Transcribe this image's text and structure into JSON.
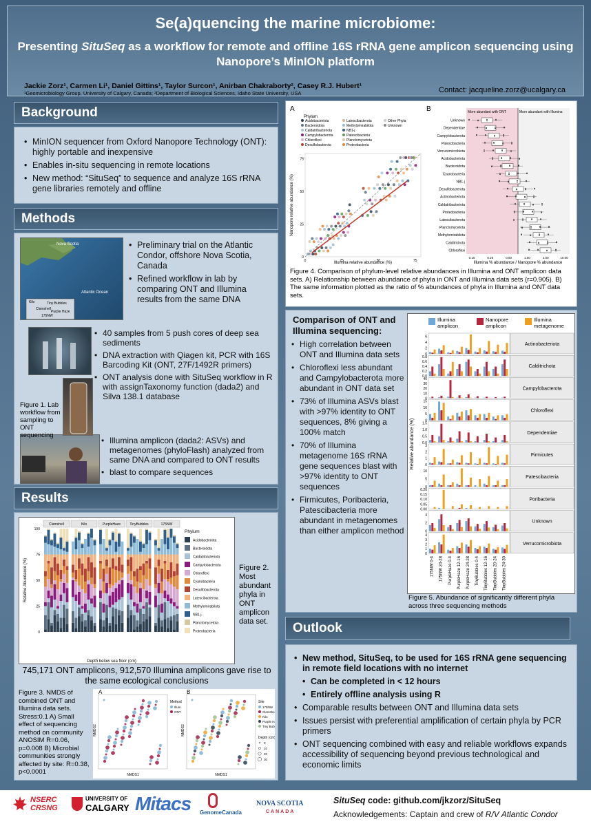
{
  "header": {
    "title": "Se(a)quencing the marine microbiome:",
    "subtitle_pre": "Presenting ",
    "subtitle_em": "SituSeq",
    "subtitle_post": " as a workflow for remote and offline 16S rRNA gene amplicon sequencing using Nanopore’s MinION platform",
    "authors": "Jackie Zorz¹, Carmen Li¹, Daniel Gittins¹, Taylor Surcon¹, Anirban Chakraborty², Casey R.J. Hubert¹",
    "affiliations": "¹Geomicrobiology Group, University of Calgary, Canada; ²Department of Biological Sciences, Idaho State University, USA",
    "contact": "Contact: jacqueline.zorz@ucalgary.ca"
  },
  "background": {
    "heading": "Background",
    "items": [
      "MinION sequencer from Oxford Nanopore Technology (ONT): highly portable and inexpensive",
      "Enables in-situ sequencing in remote locations",
      "New method: “SituSeq” to sequence and analyze 16S rRNA gene libraries remotely and offline"
    ]
  },
  "methods": {
    "heading": "Methods",
    "map_labels": [
      "Nova Scotia",
      "Atlantic Ocean",
      "Kilo",
      "Tiny Bubbles",
      "Clamshell",
      "Purple Haze",
      "175NW"
    ],
    "items_a": [
      "Preliminary trial on the Atlantic Condor, offshore Nova Scotia, Canada",
      "Refined workflow in lab by comparing ONT and Illumina results from the same DNA"
    ],
    "items_b": [
      "40 samples from 5 push cores of deep sea sediments",
      "DNA extraction with Qiagen kit, PCR with 16S Barcoding Kit (ONT, 27F/1492R primers)",
      "ONT analysis done with SituSeq workflow in R with assignTaxonomy function (dada2) and Silva 138.1 database"
    ],
    "items_c": [
      "Illumina amplicon (dada2: ASVs) and metagenomes (phyloFlash) analyzed from same DNA and compared to ONT results",
      "blast to compare sequences"
    ],
    "fig1_caption": "Figure 1. Lab workflow from sampling to ONT sequencing"
  },
  "results": {
    "heading": "Results",
    "fig2_caption": "Figure 2. Most abundant phyla in ONT amplicon data set.",
    "summary": "745,171 ONT amplicons, 912,570 Illumina amplicons gave rise to the same ecological conclusions",
    "fig3_caption": "Figure 3. NMDS of combined ONT and Illumina data sets. Stress:0.1 A) Small effect of sequencing method on community ANOSIM R=0.06, p=0.008 B) Microbial communities strongly affected by site: R=0.38, p<0.0001"
  },
  "fig2": {
    "sites": [
      "Clamshell",
      "Kilo",
      "PurpleHaze",
      "TinyBubbles",
      "175NW"
    ],
    "ylabel": "Relative Abundance (%)",
    "xlabel": "Depth below sea floor (cm)",
    "yticks": [
      "0",
      "25",
      "50",
      "75",
      "100"
    ],
    "legend_title": "Phylum",
    "phyla": [
      {
        "name": "Acidobacteriota",
        "color": "#2b3e50"
      },
      {
        "name": "Bacteroidota",
        "color": "#5b6f82"
      },
      {
        "name": "Caldatribacteriota",
        "color": "#a9c2d6"
      },
      {
        "name": "Campylobacterota",
        "color": "#8a1a7e"
      },
      {
        "name": "Chloroflexi",
        "color": "#d6a9d0"
      },
      {
        "name": "Cyanobacteria",
        "color": "#e08a3c"
      },
      {
        "name": "Desulfobacterota",
        "color": "#b3422e"
      },
      {
        "name": "Latescibacterota",
        "color": "#f2b37f"
      },
      {
        "name": "Methylomirabilota",
        "color": "#8fbcd9"
      },
      {
        "name": "NB1-j",
        "color": "#2d5f8a"
      },
      {
        "name": "Planctomycetota",
        "color": "#d9c9a3"
      },
      {
        "name": "Proteobacteria",
        "color": "#efe0b8"
      }
    ]
  },
  "fig3": {
    "panel_a": "A",
    "panel_b": "B",
    "xlabel": "NMDS1",
    "ylabel": "NMDS2",
    "legend_a_title": "Method",
    "legend_a": [
      {
        "name": "Illum.",
        "color": "#7fb2d2"
      },
      {
        "name": "ONT",
        "color": "#a51e4a"
      }
    ],
    "legend_b_title": "Site",
    "legend_b": [
      {
        "name": "175NW",
        "color": "#7fb2d2"
      },
      {
        "name": "Clamshell",
        "color": "#a51e4a"
      },
      {
        "name": "Kilo",
        "color": "#f0a431"
      },
      {
        "name": "Purple Haze",
        "color": "#2b3e50"
      },
      {
        "name": "Tiny Bubbles",
        "color": "#9ac18a"
      }
    ],
    "depth_title": "Depth (cm)",
    "depth_values": [
      "0",
      "10",
      "20",
      "30"
    ]
  },
  "fig4": {
    "panel_a": "A",
    "panel_b": "B",
    "legend_title": "Phylum",
    "legend_items": [
      {
        "name": "Acidobacteriota",
        "color": "#2b3e50"
      },
      {
        "name": "Bacteroidota",
        "color": "#5b6f82"
      },
      {
        "name": "Caldatribacteriota",
        "color": "#a9c2d6"
      },
      {
        "name": "Campylobacterota",
        "color": "#8a1a7e"
      },
      {
        "name": "Chloroflexi",
        "color": "#d6a9d0"
      },
      {
        "name": "Desulfobacterota",
        "color": "#b3422e"
      },
      {
        "name": "Latescibacterota",
        "color": "#f2b37f"
      },
      {
        "name": "Methylomirabilota",
        "color": "#8fbcd9"
      },
      {
        "name": "NB1-j",
        "color": "#2d5f8a"
      },
      {
        "name": "Patescibacteria",
        "color": "#5aa05a"
      },
      {
        "name": "Planctomycetota",
        "color": "#d9c9a3"
      },
      {
        "name": "Proteobacteria",
        "color": "#e08a3c"
      },
      {
        "name": "Other Phyla",
        "color": "#cccccc"
      },
      {
        "name": "Unknown",
        "color": "#888888"
      }
    ],
    "a_xlabel": "Illumina relative abundance (%)",
    "a_ylabel": "Nanopore relative abundance (%)",
    "a_ticks": [
      "0",
      "25",
      "50",
      "75"
    ],
    "b_header_left": "More abundant with ONT",
    "b_header_right": "More abundant with Illumina",
    "b_xlabel": "Illumina % abundance / Nanopore % abundance",
    "b_xticks": [
      "0.10",
      "0.25",
      "0.50",
      "1.00",
      "2.50",
      "10.00"
    ],
    "b_rows": [
      "Unknown",
      "Dependentiae",
      "Campylobacterota",
      "Patescibacteria",
      "Verrucomicrobiota",
      "Acidobacteriota",
      "Bacteroidota",
      "Cyanobacteria",
      "NB1-j",
      "Desulfobacterota",
      "Actinobacteriota",
      "Caldatribacteriota",
      "Proteobacteria",
      "Latescibacterota",
      "Planctomycetota",
      "Methylomirabilota",
      "Calditrichota",
      "Chloroflexi"
    ],
    "caption": "Figure 4. Comparison of phylum-level relative abundances in Illumina and ONT amplicon data sets. A) Relationship between abundance of phyla in ONT and Illumina data sets (r=0.905). B) The same information plotted as the ratio of % abundances of phyla in Illumina and ONT data sets."
  },
  "comparison": {
    "heading": "Comparison of ONT and Illumina sequencing:",
    "items": [
      "High correlation between ONT and Illumina data sets",
      "Chloroflexi less abundant and Campylobacterota more abundant in ONT data set",
      "73% of Illumina ASVs blast with >97% identity to ONT sequences, 8% giving a 100% match",
      "70% of Illumina metagenome 16S rRNA gene sequences blast with >97% identity to ONT sequences",
      "Firmicutes, Poribacteria, Patescibacteria more abundant in metagenomes than either amplicon method"
    ]
  },
  "chart_data": {
    "type": "bar",
    "title": "",
    "ylabel": "Relative abundance (%)",
    "xlabel": "",
    "legend_placement": "top",
    "categories": [
      "175NW 0-4",
      "175NW 24-28",
      "PurpleHaze 0-4",
      "PurpleHaze 12-16",
      "PurpleHaze 24-28",
      "TinyBubbles 0-4",
      "TinyBubbles 12-16",
      "TinyBubbles 20-24",
      "TinyBubbles 24-30"
    ],
    "series_meta": [
      {
        "name": "Illumina amplicon",
        "color": "#6fa8d6"
      },
      {
        "name": "Nanopore amplicon",
        "color": "#b5273f"
      },
      {
        "name": "Illumina metagenome",
        "color": "#f0a020"
      }
    ],
    "panels": [
      {
        "name": "Actinobacteriota",
        "yticks": [
          "0",
          "2",
          "4",
          "6"
        ],
        "ymax": 7,
        "series": [
          [
            0.6,
            1.8,
            0.5,
            1.0,
            2.0,
            0.8,
            1.2,
            0.9,
            1.1
          ],
          [
            0.4,
            1.2,
            0.3,
            0.6,
            1.4,
            0.5,
            0.8,
            0.6,
            0.7
          ],
          [
            1.5,
            3.0,
            1.2,
            2.5,
            6.8,
            2.0,
            4.5,
            3.2,
            3.8
          ]
        ]
      },
      {
        "name": "Calditrichota",
        "yticks": [
          "0.0",
          "0.2",
          "0.4",
          "0.6",
          "0.8"
        ],
        "ymax": 0.85,
        "series": [
          [
            0.2,
            0.5,
            0.1,
            0.3,
            0.6,
            0.2,
            0.4,
            0.3,
            0.5
          ],
          [
            0.4,
            0.8,
            0.2,
            0.5,
            0.7,
            0.3,
            0.6,
            0.4,
            0.7
          ],
          [
            0.1,
            0.3,
            0.6,
            0.2,
            0.4,
            0.1,
            0.2,
            0.1,
            0.3
          ]
        ]
      },
      {
        "name": "Campylobacterota",
        "yticks": [
          "0",
          "10",
          "20",
          "30",
          "40"
        ],
        "ymax": 42,
        "series": [
          [
            1,
            2,
            3,
            1,
            2,
            1,
            1,
            0,
            1
          ],
          [
            3,
            5,
            38,
            6,
            8,
            4,
            3,
            2,
            3
          ],
          [
            0,
            1,
            2,
            1,
            1,
            0,
            1,
            0,
            0
          ]
        ]
      },
      {
        "name": "Chloroflexi",
        "yticks": [
          "0",
          "5",
          "10",
          "15"
        ],
        "ymax": 16,
        "series": [
          [
            5,
            15,
            3,
            6,
            8,
            4,
            5,
            3,
            4
          ],
          [
            2,
            8,
            1,
            3,
            4,
            2,
            2,
            1,
            2
          ],
          [
            6,
            14,
            4,
            7,
            9,
            5,
            6,
            4,
            5
          ]
        ]
      },
      {
        "name": "Dependentiae",
        "yticks": [
          "0.0",
          "0.5",
          "1.0",
          "1.5"
        ],
        "ymax": 1.6,
        "series": [
          [
            0.2,
            0.5,
            0.1,
            0.3,
            0.2,
            0.1,
            0.2,
            0.1,
            0.2
          ],
          [
            0.6,
            1.5,
            0.4,
            0.9,
            0.8,
            0.5,
            0.7,
            0.4,
            0.6
          ],
          [
            0.1,
            0.2,
            0.1,
            0.1,
            0.1,
            0.0,
            0.1,
            0.0,
            0.1
          ]
        ]
      },
      {
        "name": "Firmicutes",
        "yticks": [
          "0",
          "1",
          "2",
          "3"
        ],
        "ymax": 3.2,
        "series": [
          [
            0.3,
            0.5,
            0.2,
            0.4,
            0.3,
            0.2,
            0.3,
            0.2,
            0.3
          ],
          [
            0.2,
            0.4,
            0.2,
            0.3,
            0.2,
            0.1,
            0.2,
            0.1,
            0.2
          ],
          [
            1.2,
            2.5,
            0.8,
            1.5,
            2.0,
            1.0,
            2.8,
            1.4,
            1.6
          ]
        ]
      },
      {
        "name": "Patescibacteria",
        "yticks": [
          "0",
          "5",
          "10"
        ],
        "ymax": 13,
        "series": [
          [
            1,
            2,
            1,
            2,
            1,
            1,
            2,
            1,
            1
          ],
          [
            1,
            1,
            1,
            1,
            1,
            0,
            1,
            1,
            1
          ],
          [
            4,
            8,
            3,
            12,
            6,
            5,
            7,
            4,
            5
          ]
        ]
      },
      {
        "name": "Poribacteria",
        "yticks": [
          "0.00",
          "0.05",
          "0.10",
          "0.15",
          "0.20"
        ],
        "ymax": 0.21,
        "series": [
          [
            0.0,
            0.01,
            0.0,
            0.0,
            0.01,
            0.0,
            0.0,
            0.0,
            0.0
          ],
          [
            0.0,
            0.0,
            0.0,
            0.01,
            0.0,
            0.0,
            0.0,
            0.0,
            0.0
          ],
          [
            0.02,
            0.2,
            0.03,
            0.05,
            0.04,
            0.02,
            0.03,
            0.02,
            0.03
          ]
        ]
      },
      {
        "name": "Unknown",
        "yticks": [
          "0",
          "2",
          "4"
        ],
        "ymax": 5,
        "series": [
          [
            1.5,
            3.0,
            1.0,
            2.0,
            2.5,
            1.2,
            1.8,
            1.0,
            1.4
          ],
          [
            2.0,
            4.2,
            1.5,
            2.8,
            3.2,
            1.8,
            2.5,
            1.6,
            2.0
          ],
          [
            0.8,
            1.5,
            0.5,
            1.0,
            1.2,
            0.6,
            0.9,
            0.5,
            0.7
          ]
        ]
      },
      {
        "name": "Verrucomicrobiota",
        "yticks": [
          "0",
          "1",
          "2",
          "3",
          "4"
        ],
        "ymax": 4.5,
        "series": [
          [
            1.0,
            2.5,
            0.8,
            1.6,
            2.0,
            1.2,
            1.5,
            1.0,
            1.3
          ],
          [
            0.8,
            2.0,
            0.6,
            1.2,
            1.5,
            0.9,
            1.2,
            0.8,
            1.0
          ],
          [
            1.8,
            4.2,
            1.2,
            2.4,
            3.0,
            1.6,
            2.2,
            1.4,
            1.9
          ]
        ]
      }
    ]
  },
  "fig5_caption": "Figure 5. Abundance of significantly different phyla across three sequencing methods",
  "outlook": {
    "heading": "Outlook",
    "items": [
      {
        "text": "New method, SituSeq, to be used for 16S rRNA gene sequencing in remote field locations with no internet",
        "level": 0,
        "bold": true
      },
      {
        "text": "Can be completed in < 12 hours",
        "level": 1,
        "bold": true
      },
      {
        "text": "Entirely offline analysis using R",
        "level": 1,
        "bold": true
      },
      {
        "text": "Comparable results between ONT and Illumina data sets",
        "level": 0,
        "bold": false
      },
      {
        "text": "Issues persist with preferential amplification of certain phyla by PCR primers",
        "level": 0,
        "bold": false
      },
      {
        "text": "ONT sequencing combined with easy and reliable workflows expands accessibility of sequencing beyond previous technological and economic limits",
        "level": 0,
        "bold": false
      }
    ]
  },
  "footer": {
    "logos": [
      "NSERC",
      "CRSNG",
      "UNIVERSITY OF",
      "CALGARY",
      "Mitacs",
      "GenomeCanada",
      "NOVA SCOTIA",
      "CANADA"
    ],
    "code_label": "SituSeq",
    "code_text": " code: github.com/jkzorz/SituSeq",
    "ack_pre": "Acknowledgements: Captain and crew of ",
    "ack_em": "R/V Atlantic Condor"
  }
}
